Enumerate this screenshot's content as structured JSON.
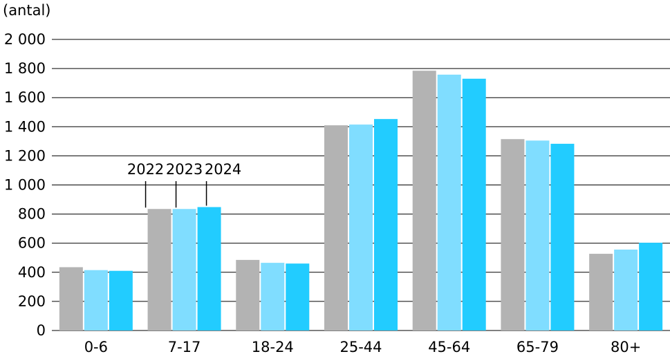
{
  "chart_data": {
    "type": "bar",
    "y_label": "(antal)",
    "categories": [
      "0-6",
      "7-17",
      "18-24",
      "25-44",
      "45-64",
      "65-79",
      "80+"
    ],
    "series": [
      {
        "name": "2022",
        "color": "#b3b3b3",
        "values": [
          435,
          835,
          485,
          1410,
          1785,
          1315,
          527
        ]
      },
      {
        "name": "2023",
        "color": "#80ddff",
        "values": [
          415,
          835,
          465,
          1415,
          1758,
          1305,
          556
        ]
      },
      {
        "name": "2024",
        "color": "#22ccff",
        "values": [
          410,
          848,
          460,
          1453,
          1730,
          1283,
          603
        ]
      }
    ],
    "ylim": [
      0,
      2000
    ],
    "yticks": [
      0,
      200,
      400,
      600,
      800,
      {
        "value": 1000,
        "label": "1 000"
      },
      {
        "value": 1200,
        "label": "1 200"
      },
      {
        "value": 1400,
        "label": "1 400"
      },
      {
        "value": 1600,
        "label": "1 600"
      },
      {
        "value": 1800,
        "label": "1 800"
      },
      {
        "value": 2000,
        "label": "2 000"
      }
    ],
    "grid": true
  }
}
